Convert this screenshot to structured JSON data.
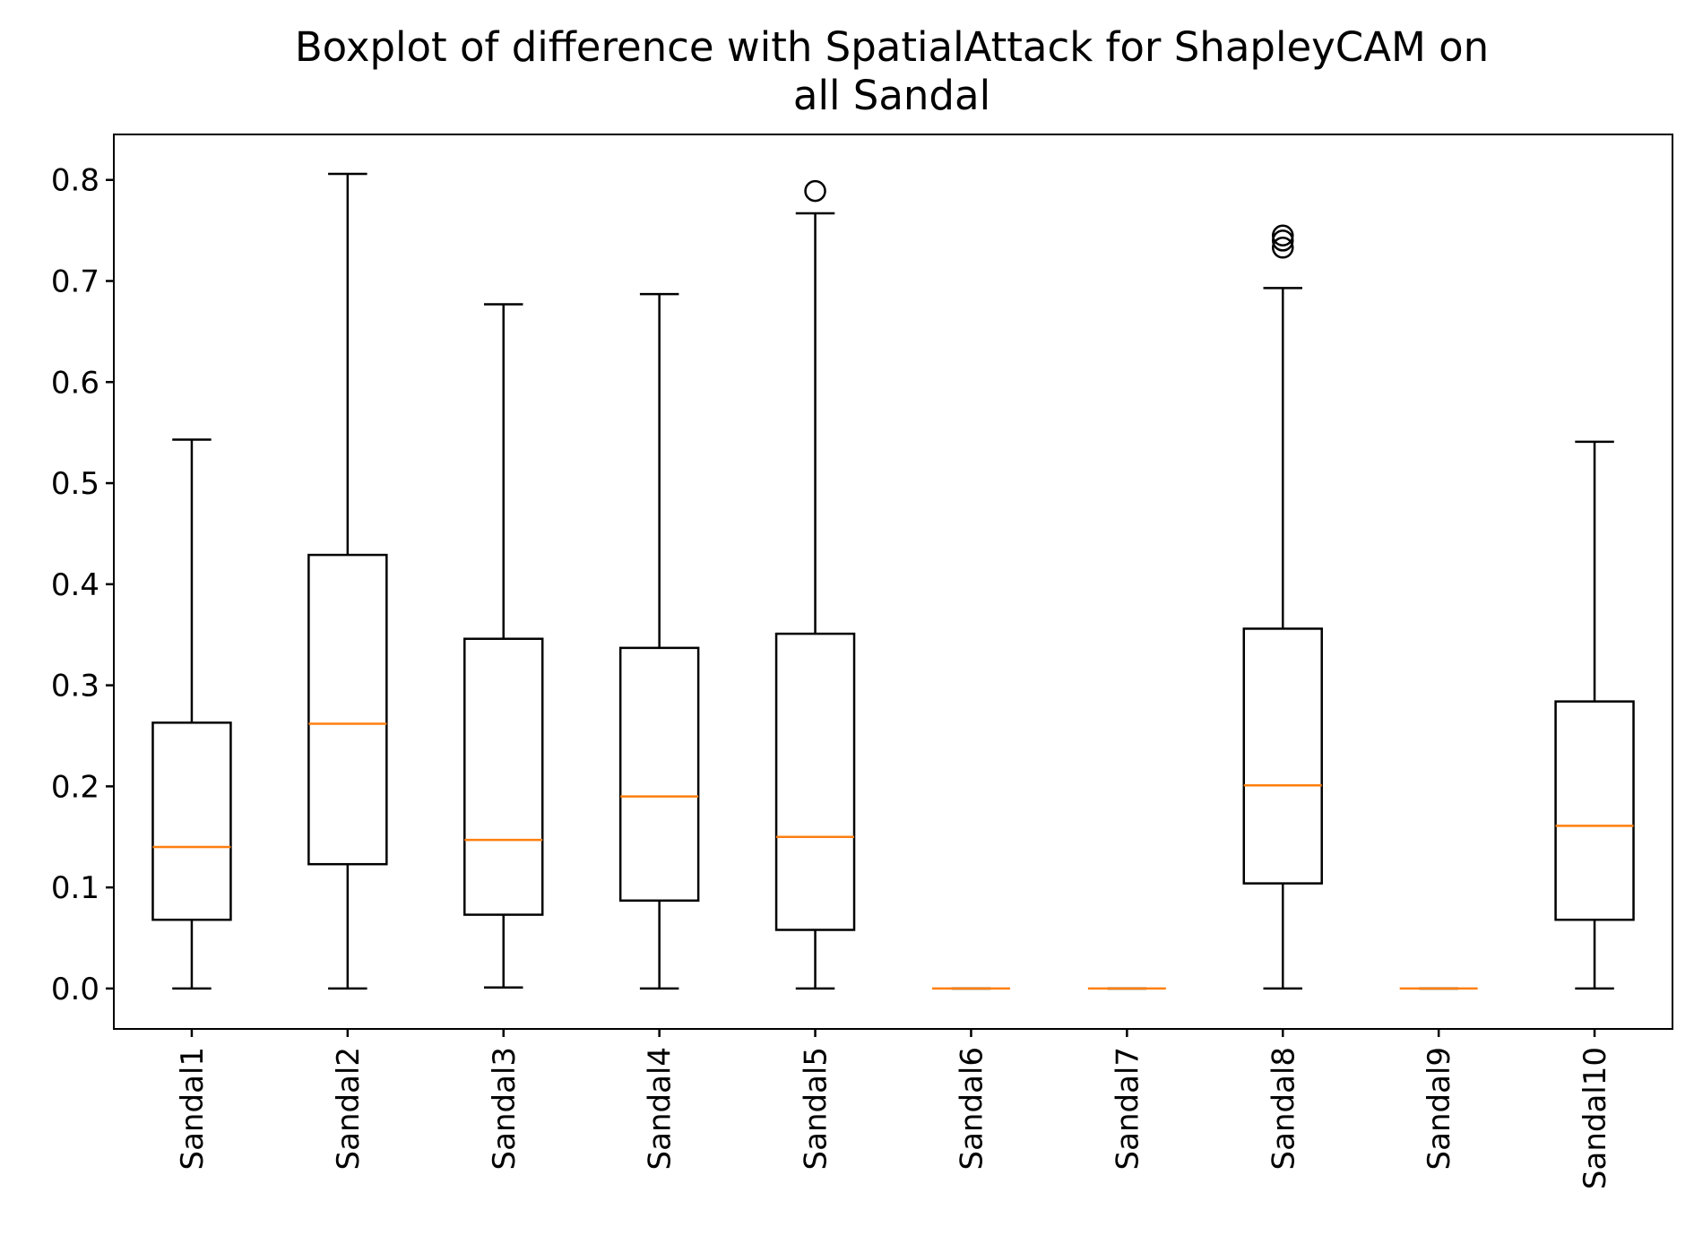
{
  "chart_data": {
    "type": "boxplot",
    "title_lines": [
      "Boxplot of difference with SpatialAttack for ShapleyCAM on",
      "all Sandal"
    ],
    "xlabel": "",
    "ylabel": "",
    "ylim": [
      -0.04,
      0.845
    ],
    "yticks": [
      0.0,
      0.1,
      0.2,
      0.3,
      0.4,
      0.5,
      0.6,
      0.7,
      0.8
    ],
    "ytick_labels": [
      "0.0",
      "0.1",
      "0.2",
      "0.3",
      "0.4",
      "0.5",
      "0.6",
      "0.7",
      "0.8"
    ],
    "grid": false,
    "colors": {
      "box": "#000000",
      "median": "#ff7f0e",
      "outlier": "#000000"
    },
    "boxes": [
      {
        "label": "Sandal1",
        "whisker_low": 0.0,
        "q1": 0.068,
        "median": 0.14,
        "q3": 0.263,
        "whisker_high": 0.543,
        "outliers": []
      },
      {
        "label": "Sandal2",
        "whisker_low": 0.0,
        "q1": 0.123,
        "median": 0.262,
        "q3": 0.429,
        "whisker_high": 0.806,
        "outliers": []
      },
      {
        "label": "Sandal3",
        "whisker_low": 0.001,
        "q1": 0.073,
        "median": 0.147,
        "q3": 0.346,
        "whisker_high": 0.677,
        "outliers": []
      },
      {
        "label": "Sandal4",
        "whisker_low": 0.0,
        "q1": 0.087,
        "median": 0.19,
        "q3": 0.337,
        "whisker_high": 0.687,
        "outliers": []
      },
      {
        "label": "Sandal5",
        "whisker_low": 0.0,
        "q1": 0.058,
        "median": 0.15,
        "q3": 0.351,
        "whisker_high": 0.767,
        "outliers": [
          0.789
        ]
      },
      {
        "label": "Sandal6",
        "whisker_low": 0.0,
        "q1": 0.0,
        "median": 0.0,
        "q3": 0.0,
        "whisker_high": 0.0,
        "outliers": []
      },
      {
        "label": "Sandal7",
        "whisker_low": 0.0,
        "q1": 0.0,
        "median": 0.0,
        "q3": 0.0,
        "whisker_high": 0.0,
        "outliers": []
      },
      {
        "label": "Sandal8",
        "whisker_low": 0.0,
        "q1": 0.104,
        "median": 0.201,
        "q3": 0.356,
        "whisker_high": 0.693,
        "outliers": [
          0.733,
          0.74,
          0.745
        ]
      },
      {
        "label": "Sandal9",
        "whisker_low": 0.0,
        "q1": 0.0,
        "median": 0.0,
        "q3": 0.0,
        "whisker_high": 0.0,
        "outliers": []
      },
      {
        "label": "Sandal10",
        "whisker_low": 0.0,
        "q1": 0.068,
        "median": 0.161,
        "q3": 0.284,
        "whisker_high": 0.541,
        "outliers": []
      }
    ]
  }
}
